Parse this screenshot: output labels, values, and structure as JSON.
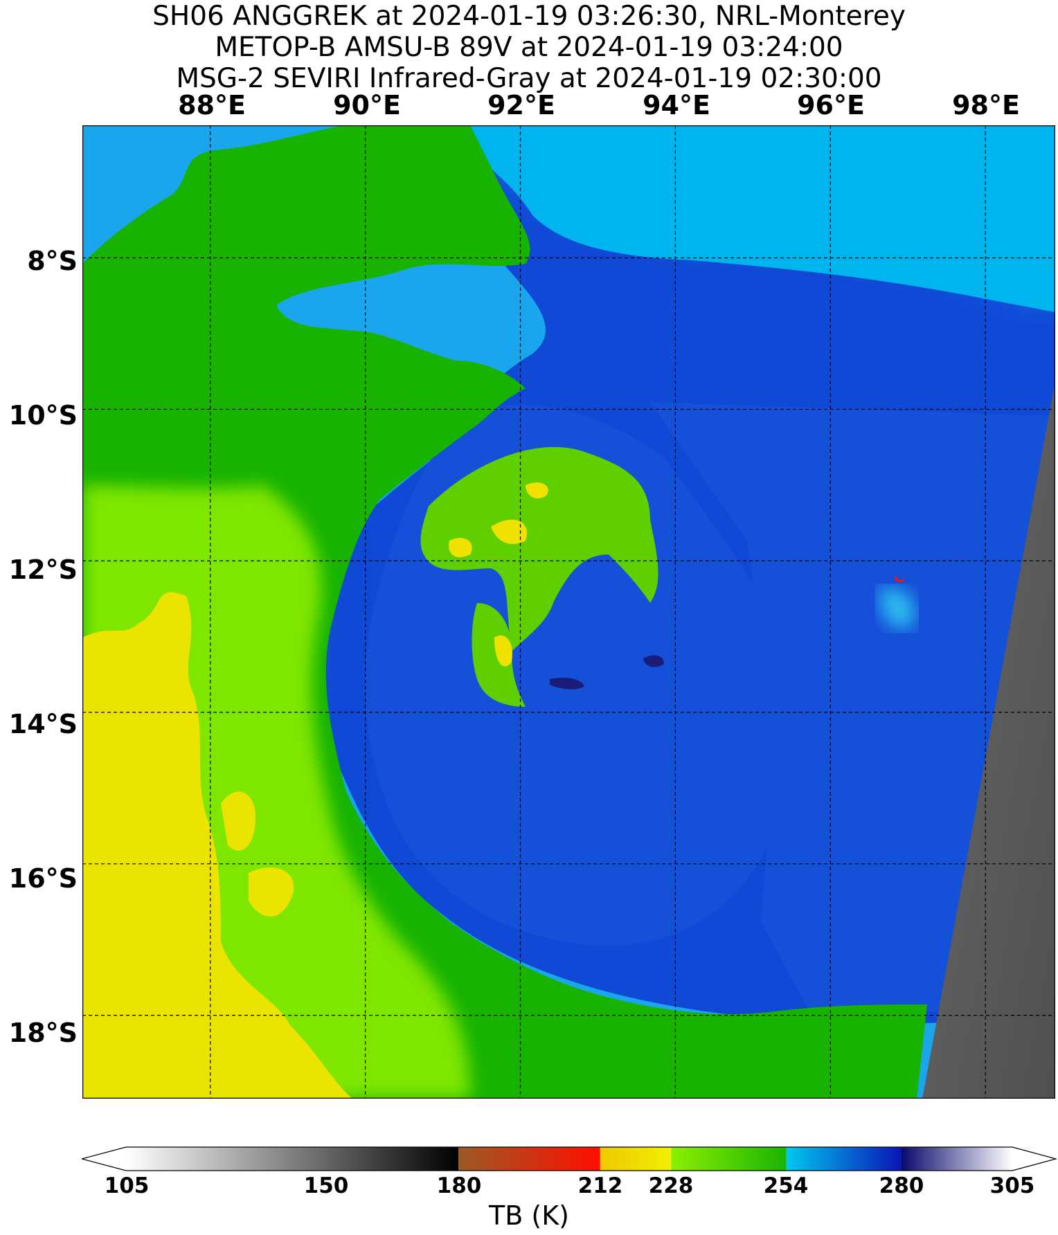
{
  "title": {
    "line1": "SH06 ANGGREK at 2024-01-19 03:26:30, NRL-Monterey",
    "line2": "METOP-B AMSU-B 89V at 2024-01-19 03:24:00",
    "line3": "MSG-2 SEVIRI Infrared-Gray at 2024-01-19 02:30:00"
  },
  "map": {
    "longitude_labels": [
      "88°E",
      "90°E",
      "92°E",
      "94°E",
      "96°E",
      "98°E"
    ],
    "latitude_labels": [
      "8°S",
      "10°S",
      "12°S",
      "14°S",
      "16°S",
      "18°S"
    ],
    "longitude_values": [
      88,
      90,
      92,
      94,
      96,
      98
    ],
    "latitude_values": [
      -8,
      -10,
      -12,
      -14,
      -16,
      -18
    ],
    "lon_range": [
      86.35,
      98.9
    ],
    "lat_range": [
      -19.1,
      -6.25
    ],
    "gridlines": "dashed black"
  },
  "colorbar": {
    "label": "TB (K)",
    "ticks": [
      "105",
      "150",
      "180",
      "212",
      "228",
      "254",
      "280",
      "305"
    ],
    "tick_values": [
      105,
      150,
      180,
      212,
      228,
      254,
      280,
      305
    ],
    "range": [
      105,
      305
    ],
    "extend": "both",
    "colors": {
      "gray_light": "#ffffff",
      "gray_dark": "#000000",
      "brown": "#9b5a24",
      "red": "#ff0f00",
      "yellow": "#f0e600",
      "green_light": "#8cf000",
      "green": "#19b400",
      "cyan": "#00c8f0",
      "blue": "#0a3cd2",
      "navy": "#0a0a6e",
      "lavender": "#ffffff"
    }
  },
  "features": {
    "storm_name": "SH06 ANGGREK",
    "ir_gray_swath": "east edge"
  }
}
